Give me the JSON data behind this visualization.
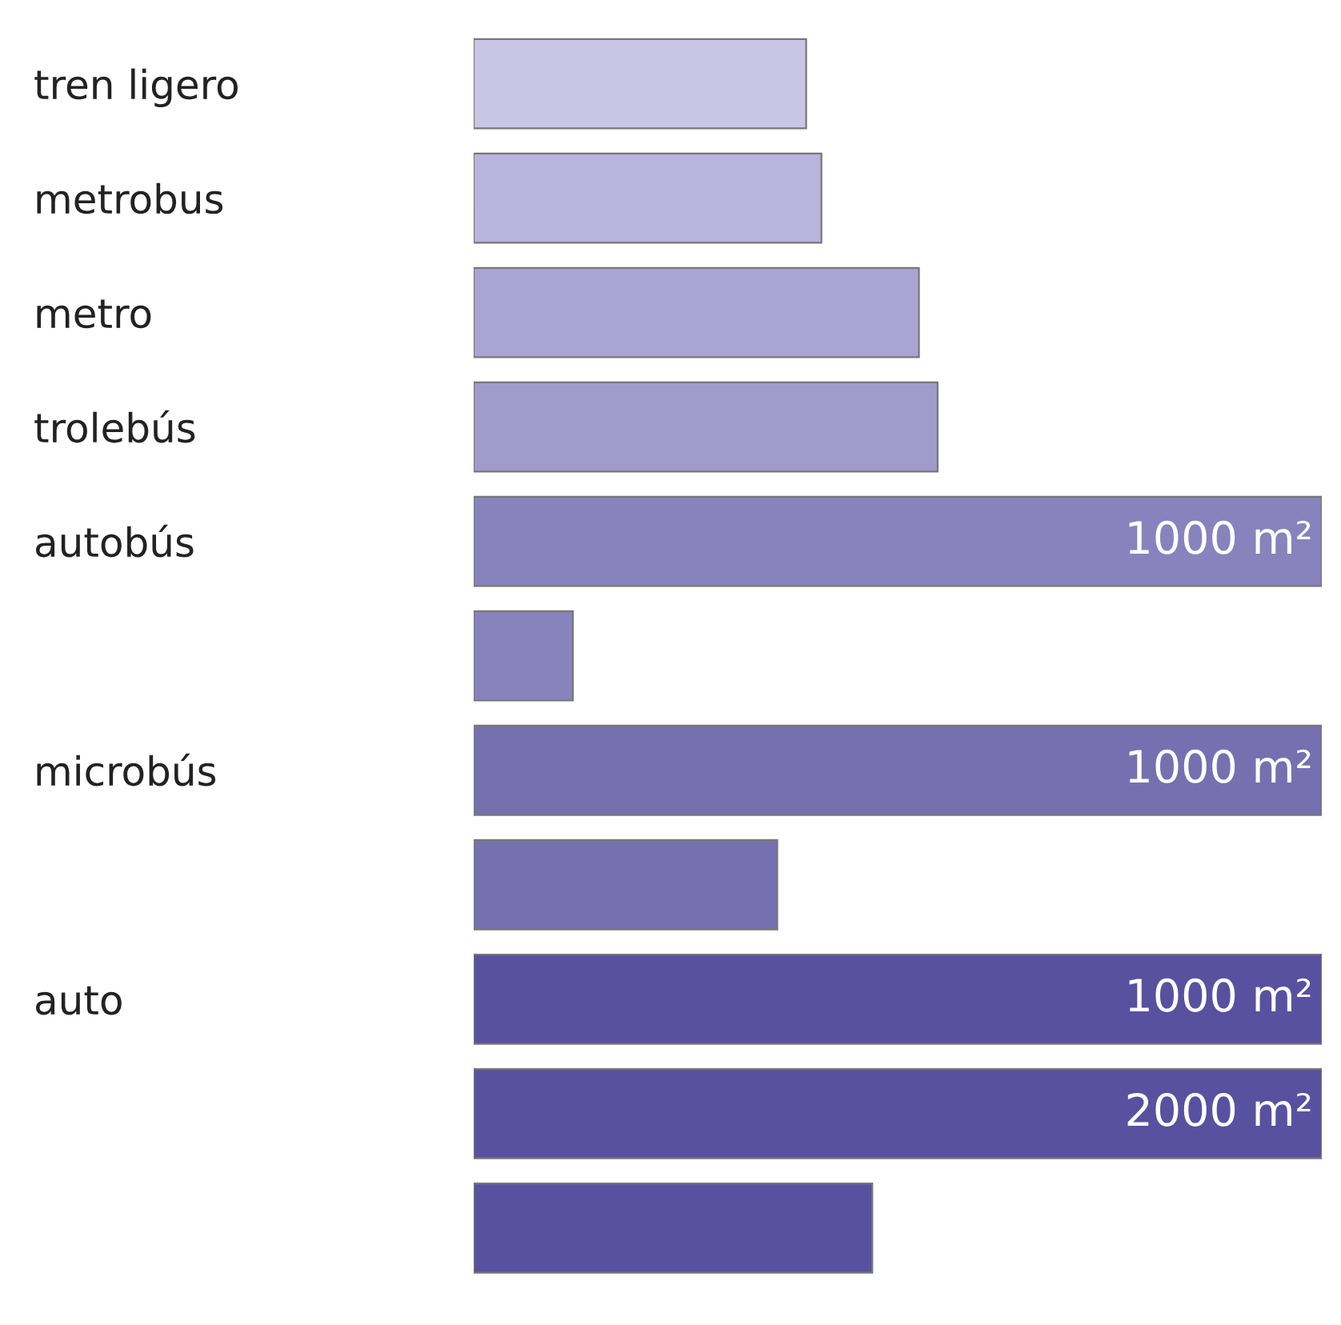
{
  "chart_data": {
    "type": "bar",
    "orientation": "horizontal",
    "categories": [
      "tren ligero",
      "metrobus",
      "metro",
      "trolebús",
      "autobús",
      null,
      "microbús",
      null,
      "auto",
      null,
      null
    ],
    "values": [
      392,
      410,
      525,
      547,
      1000,
      117,
      1000,
      358,
      1000,
      1000,
      470
    ],
    "colors": [
      "#c9c5e4",
      "#b9b4dc",
      "#aaa4d2",
      "#a19bcc",
      "#8882bd",
      "#8882bd",
      "#7670b0",
      "#7670b0",
      "#58519f",
      "#58519f",
      "#58519f"
    ],
    "xlim": [
      0,
      1000
    ],
    "tick_labels": "y",
    "value_labels": [
      null,
      null,
      null,
      null,
      "1000 m²",
      null,
      "1000 m²",
      null,
      "1000 m²",
      null,
      null
    ],
    "annotations": [
      "2000 m²"
    ]
  }
}
